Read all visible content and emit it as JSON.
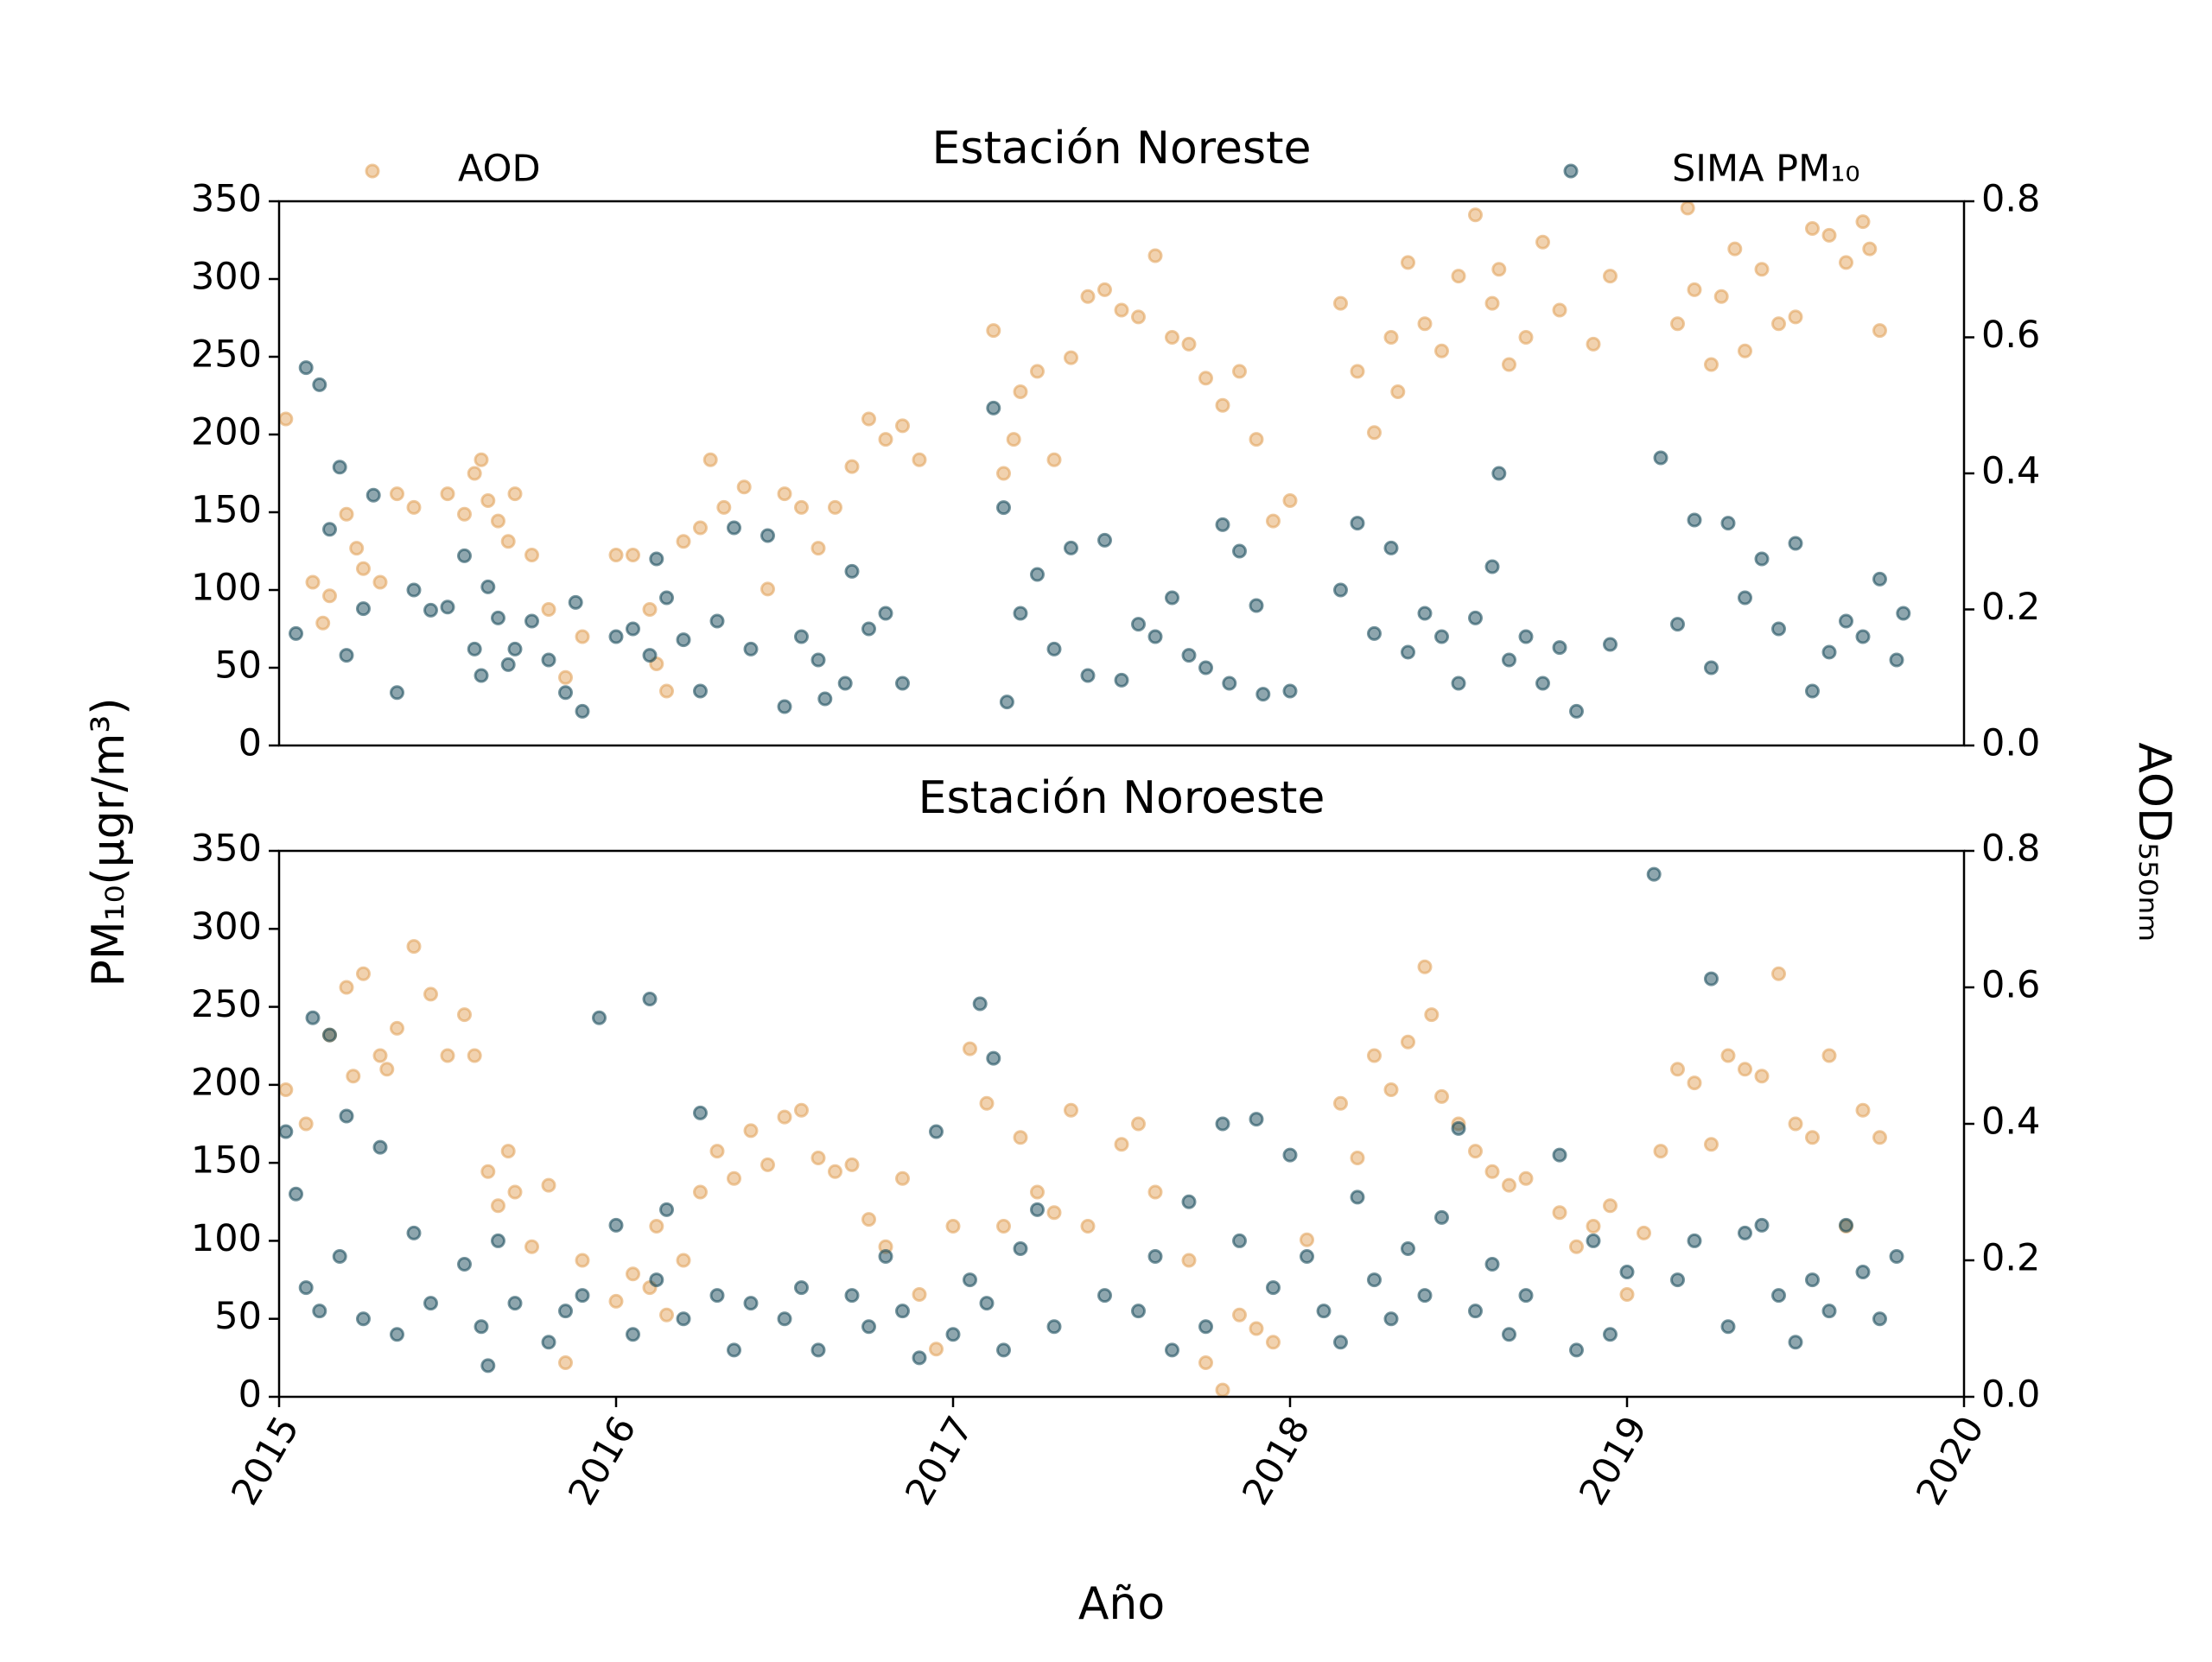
{
  "xlabel": "Año",
  "ylabel": "PM₁₀(μgr/m³)",
  "y2label": "AOD₅₅₀ₙₘ",
  "chart_data": [
    {
      "type": "scatter",
      "title": "Estación Noreste",
      "legend": "outside-top",
      "xlim": [
        2015,
        2020
      ],
      "ylim": [
        0,
        350
      ],
      "yticks": [
        0,
        50,
        100,
        150,
        200,
        250,
        300,
        350
      ],
      "y2lim": [
        0,
        0.8
      ],
      "y2ticks": [
        {
          "value": 0,
          "label": "0.0"
        },
        0.2,
        0.4,
        0.6,
        0.8
      ],
      "series": [
        {
          "name": "AOD",
          "color": "#e3a55f",
          "axis": "y2",
          "x": [
            2015.02,
            2015.1,
            2015.13,
            2015.15,
            2015.2,
            2015.25,
            2015.23,
            2015.3,
            2015.35,
            2015.4,
            2015.5,
            2015.55,
            2015.58,
            2015.6,
            2015.62,
            2015.65,
            2015.68,
            2015.7,
            2015.75,
            2015.8,
            2015.85,
            2015.9,
            2016.0,
            2016.05,
            2016.1,
            2016.12,
            2016.15,
            2016.2,
            2016.25,
            2016.28,
            2016.32,
            2016.38,
            2016.45,
            2016.5,
            2016.55,
            2016.6,
            2016.65,
            2016.7,
            2016.75,
            2016.8,
            2016.85,
            2016.9,
            2017.12,
            2017.15,
            2017.18,
            2017.2,
            2017.25,
            2017.3,
            2017.35,
            2017.4,
            2017.45,
            2017.5,
            2017.55,
            2017.6,
            2017.65,
            2017.7,
            2017.75,
            2017.8,
            2017.85,
            2017.9,
            2017.95,
            2018.0,
            2018.15,
            2018.2,
            2018.25,
            2018.3,
            2018.32,
            2018.35,
            2018.4,
            2018.45,
            2018.5,
            2018.55,
            2018.6,
            2018.62,
            2018.65,
            2018.7,
            2018.75,
            2018.8,
            2018.9,
            2018.95,
            2019.15,
            2019.18,
            2019.2,
            2019.25,
            2019.28,
            2019.32,
            2019.35,
            2019.4,
            2019.45,
            2019.5,
            2019.55,
            2019.6,
            2019.65,
            2019.7,
            2019.72,
            2019.75
          ],
          "values": [
            0.48,
            0.24,
            0.18,
            0.22,
            0.34,
            0.26,
            0.29,
            0.24,
            0.37,
            0.35,
            0.37,
            0.34,
            0.4,
            0.42,
            0.36,
            0.33,
            0.3,
            0.37,
            0.28,
            0.2,
            0.1,
            0.16,
            0.28,
            0.28,
            0.2,
            0.12,
            0.08,
            0.3,
            0.32,
            0.42,
            0.35,
            0.38,
            0.23,
            0.37,
            0.35,
            0.29,
            0.35,
            0.41,
            0.48,
            0.45,
            0.47,
            0.42,
            0.61,
            0.4,
            0.45,
            0.52,
            0.55,
            0.42,
            0.57,
            0.66,
            0.67,
            0.64,
            0.63,
            0.72,
            0.6,
            0.59,
            0.54,
            0.5,
            0.55,
            0.45,
            0.33,
            0.36,
            0.65,
            0.55,
            0.46,
            0.6,
            0.52,
            0.71,
            0.62,
            0.58,
            0.69,
            0.78,
            0.65,
            0.7,
            0.56,
            0.6,
            0.74,
            0.64,
            0.59,
            0.69,
            0.62,
            0.79,
            0.67,
            0.56,
            0.66,
            0.73,
            0.58,
            0.7,
            0.62,
            0.63,
            0.76,
            0.75,
            0.71,
            0.77,
            0.73,
            0.61
          ]
        },
        {
          "name": "SIMA PM₁₀",
          "color": "#1d4e5e",
          "axis": "y",
          "x": [
            2015.05,
            2015.08,
            2015.12,
            2015.15,
            2015.18,
            2015.2,
            2015.25,
            2015.28,
            2015.35,
            2015.4,
            2015.45,
            2015.5,
            2015.55,
            2015.58,
            2015.6,
            2015.62,
            2015.65,
            2015.68,
            2015.7,
            2015.75,
            2015.8,
            2015.85,
            2015.88,
            2015.9,
            2016.0,
            2016.05,
            2016.1,
            2016.12,
            2016.15,
            2016.2,
            2016.25,
            2016.3,
            2016.35,
            2016.4,
            2016.45,
            2016.5,
            2016.55,
            2016.6,
            2016.62,
            2016.68,
            2016.7,
            2016.75,
            2016.8,
            2016.85,
            2017.12,
            2017.15,
            2017.16,
            2017.2,
            2017.25,
            2017.3,
            2017.35,
            2017.4,
            2017.45,
            2017.5,
            2017.55,
            2017.6,
            2017.65,
            2017.7,
            2017.75,
            2017.8,
            2017.82,
            2017.85,
            2017.9,
            2017.92,
            2018.0,
            2018.15,
            2018.2,
            2018.25,
            2018.3,
            2018.35,
            2018.4,
            2018.45,
            2018.5,
            2018.55,
            2018.6,
            2018.62,
            2018.65,
            2018.7,
            2018.75,
            2018.8,
            2018.85,
            2018.95,
            2019.1,
            2019.15,
            2019.2,
            2019.25,
            2019.3,
            2019.35,
            2019.4,
            2019.45,
            2019.5,
            2019.55,
            2019.6,
            2019.65,
            2019.7,
            2019.75,
            2019.8,
            2019.82
          ],
          "values": [
            72,
            243,
            232,
            139,
            179,
            58,
            88,
            161,
            34,
            100,
            87,
            89,
            122,
            62,
            45,
            102,
            82,
            52,
            62,
            80,
            55,
            34,
            92,
            22,
            70,
            75,
            58,
            120,
            95,
            68,
            35,
            80,
            140,
            62,
            135,
            25,
            70,
            55,
            30,
            40,
            112,
            75,
            85,
            40,
            217,
            153,
            28,
            85,
            110,
            62,
            127,
            45,
            132,
            42,
            78,
            70,
            95,
            58,
            50,
            142,
            40,
            125,
            90,
            33,
            35,
            100,
            143,
            72,
            127,
            60,
            85,
            70,
            40,
            82,
            115,
            175,
            55,
            70,
            40,
            63,
            22,
            65,
            185,
            78,
            145,
            50,
            143,
            95,
            120,
            75,
            130,
            35,
            60,
            80,
            70,
            107,
            55,
            85
          ]
        }
      ]
    },
    {
      "type": "scatter",
      "title": "Estación Noroeste",
      "xlim": [
        2015,
        2020
      ],
      "xticks": [
        2015,
        2016,
        2017,
        2018,
        2019,
        2020
      ],
      "ylim": [
        0,
        350
      ],
      "yticks": [
        0,
        50,
        100,
        150,
        200,
        250,
        300,
        350
      ],
      "y2lim": [
        0,
        0.8
      ],
      "y2ticks": [
        {
          "value": 0,
          "label": "0.0"
        },
        0.2,
        0.4,
        0.6,
        0.8
      ],
      "series": [
        {
          "color": "#e3a55f",
          "axis": "y2",
          "x": [
            2015.02,
            2015.08,
            2015.15,
            2015.2,
            2015.22,
            2015.25,
            2015.3,
            2015.32,
            2015.35,
            2015.4,
            2015.45,
            2015.5,
            2015.55,
            2015.58,
            2015.62,
            2015.65,
            2015.68,
            2015.7,
            2015.75,
            2015.8,
            2015.85,
            2015.9,
            2016.0,
            2016.05,
            2016.1,
            2016.12,
            2016.15,
            2016.2,
            2016.25,
            2016.3,
            2016.35,
            2016.4,
            2016.45,
            2016.5,
            2016.55,
            2016.6,
            2016.65,
            2016.7,
            2016.75,
            2016.8,
            2016.85,
            2016.9,
            2016.95,
            2017.0,
            2017.05,
            2017.1,
            2017.15,
            2017.2,
            2017.25,
            2017.3,
            2017.35,
            2017.4,
            2017.5,
            2017.55,
            2017.6,
            2017.7,
            2017.75,
            2017.8,
            2017.85,
            2017.9,
            2017.95,
            2018.05,
            2018.15,
            2018.2,
            2018.25,
            2018.3,
            2018.35,
            2018.4,
            2018.42,
            2018.45,
            2018.5,
            2018.55,
            2018.6,
            2018.65,
            2018.7,
            2018.8,
            2018.85,
            2018.9,
            2018.95,
            2019.0,
            2019.05,
            2019.1,
            2019.15,
            2019.2,
            2019.25,
            2019.3,
            2019.35,
            2019.4,
            2019.45,
            2019.5,
            2019.55,
            2019.6,
            2019.65,
            2019.7,
            2019.75
          ],
          "values": [
            0.45,
            0.4,
            0.53,
            0.6,
            0.47,
            0.62,
            0.5,
            0.48,
            0.54,
            0.66,
            0.59,
            0.5,
            0.56,
            0.5,
            0.33,
            0.28,
            0.36,
            0.3,
            0.22,
            0.31,
            0.05,
            0.2,
            0.14,
            0.18,
            0.16,
            0.25,
            0.12,
            0.2,
            0.3,
            0.36,
            0.32,
            0.39,
            0.34,
            0.41,
            0.42,
            0.35,
            0.33,
            0.34,
            0.26,
            0.22,
            0.32,
            0.15,
            0.07,
            0.25,
            0.51,
            0.43,
            0.25,
            0.38,
            0.3,
            0.27,
            0.42,
            0.25,
            0.37,
            0.4,
            0.3,
            0.2,
            0.05,
            0.01,
            0.12,
            0.1,
            0.08,
            0.23,
            0.43,
            0.35,
            0.5,
            0.45,
            0.52,
            0.63,
            0.56,
            0.44,
            0.4,
            0.36,
            0.33,
            0.31,
            0.32,
            0.27,
            0.22,
            0.25,
            0.28,
            0.15,
            0.24,
            0.36,
            0.48,
            0.46,
            0.37,
            0.5,
            0.48,
            0.47,
            0.62,
            0.4,
            0.38,
            0.5,
            0.25,
            0.42,
            0.38
          ]
        },
        {
          "color": "#1d4e5e",
          "axis": "y",
          "x": [
            2015.02,
            2015.05,
            2015.08,
            2015.1,
            2015.12,
            2015.15,
            2015.18,
            2015.2,
            2015.25,
            2015.3,
            2015.35,
            2015.4,
            2015.45,
            2015.55,
            2015.6,
            2015.62,
            2015.65,
            2015.7,
            2015.8,
            2015.85,
            2015.9,
            2015.95,
            2016.0,
            2016.05,
            2016.1,
            2016.12,
            2016.15,
            2016.2,
            2016.25,
            2016.3,
            2016.35,
            2016.4,
            2016.5,
            2016.55,
            2016.6,
            2016.7,
            2016.75,
            2016.8,
            2016.85,
            2016.9,
            2016.95,
            2017.0,
            2017.05,
            2017.08,
            2017.1,
            2017.12,
            2017.15,
            2017.2,
            2017.25,
            2017.3,
            2017.45,
            2017.55,
            2017.6,
            2017.65,
            2017.7,
            2017.75,
            2017.8,
            2017.85,
            2017.9,
            2017.95,
            2018.0,
            2018.05,
            2018.1,
            2018.15,
            2018.2,
            2018.25,
            2018.3,
            2018.35,
            2018.4,
            2018.45,
            2018.5,
            2018.55,
            2018.6,
            2018.65,
            2018.7,
            2018.8,
            2018.85,
            2018.9,
            2018.95,
            2019.0,
            2019.08,
            2019.15,
            2019.2,
            2019.25,
            2019.3,
            2019.35,
            2019.4,
            2019.45,
            2019.5,
            2019.55,
            2019.6,
            2019.65,
            2019.7,
            2019.75,
            2019.8
          ],
          "values": [
            170,
            130,
            70,
            243,
            55,
            232,
            90,
            180,
            50,
            160,
            40,
            105,
            60,
            85,
            45,
            20,
            100,
            60,
            35,
            55,
            65,
            243,
            110,
            40,
            255,
            75,
            120,
            50,
            182,
            65,
            30,
            60,
            50,
            70,
            30,
            65,
            45,
            90,
            55,
            25,
            170,
            40,
            75,
            252,
            60,
            217,
            30,
            95,
            120,
            45,
            65,
            55,
            90,
            30,
            125,
            45,
            175,
            100,
            178,
            70,
            155,
            90,
            55,
            35,
            128,
            75,
            50,
            95,
            65,
            115,
            172,
            55,
            85,
            40,
            65,
            155,
            30,
            100,
            40,
            80,
            335,
            75,
            100,
            268,
            45,
            105,
            110,
            65,
            35,
            75,
            55,
            110,
            80,
            50,
            90
          ]
        }
      ]
    }
  ]
}
